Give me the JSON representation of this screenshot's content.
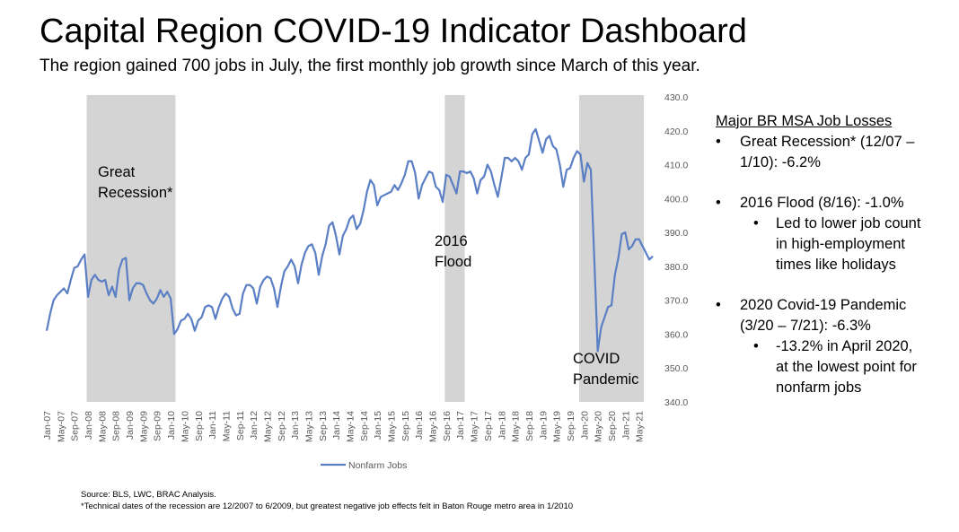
{
  "title": "Capital Region COVID-19 Indicator Dashboard",
  "subtitle": "The region gained 700 jobs in July, the first monthly job growth since March of this year.",
  "chart_data": {
    "type": "line",
    "series": [
      {
        "name": "Nonfarm Jobs",
        "color": "#5b7fc4",
        "start": "Jan-07",
        "values": [
          361,
          366,
          370,
          371.5,
          372.5,
          373.5,
          372,
          376,
          379.5,
          380,
          382,
          383.5,
          371,
          376,
          377.5,
          376,
          375.5,
          376,
          371.5,
          374,
          371,
          379,
          382,
          382.5,
          370,
          373.5,
          375,
          375,
          374.5,
          372,
          370,
          369,
          370.5,
          373,
          371,
          372.5,
          370.5,
          360,
          361.5,
          364,
          364.5,
          366,
          364.5,
          361,
          364,
          365,
          368,
          368.5,
          368,
          364.5,
          368,
          370.5,
          372,
          371,
          367.5,
          365.5,
          366,
          372,
          374.5,
          374.5,
          373.5,
          369,
          374,
          376,
          377,
          376.5,
          373.5,
          368,
          374,
          378.5,
          380,
          382,
          380,
          375,
          380.5,
          384,
          386,
          386.5,
          384,
          377.5,
          383,
          386.5,
          392,
          393,
          389,
          383.5,
          389,
          391,
          394,
          395,
          391,
          392.5,
          396.5,
          402,
          405.5,
          404,
          398,
          400.5,
          401,
          401.5,
          402,
          404,
          402.5,
          404.5,
          407,
          411,
          411,
          407.5,
          400,
          404,
          406,
          408,
          407.5,
          403.5,
          402.5,
          399,
          407,
          406.5,
          404,
          401.5,
          408,
          408,
          407.5,
          408,
          406,
          401.5,
          405.5,
          406.5,
          410,
          408,
          404,
          400.5,
          406,
          412,
          412,
          411,
          412,
          411,
          408.5,
          412,
          413,
          419,
          420.5,
          417,
          413.5,
          417.5,
          418.5,
          415.5,
          414.5,
          410,
          403.5,
          408.5,
          409,
          412,
          414,
          413,
          405,
          410.5,
          408.5,
          382.5,
          355,
          362,
          365,
          368,
          368.5,
          377.5,
          382.5,
          389.5,
          390,
          385,
          386,
          388,
          388,
          386,
          384,
          382,
          383
        ]
      }
    ],
    "x_tick_labels": [
      "Jan-07",
      "May-07",
      "Sep-07",
      "Jan-08",
      "May-08",
      "Sep-08",
      "Jan-09",
      "May-09",
      "Sep-09",
      "Jan-10",
      "May-10",
      "Sep-10",
      "Jan-11",
      "May-11",
      "Sep-11",
      "Jan-12",
      "May-12",
      "Sep-12",
      "Jan-13",
      "May-13",
      "Sep-13",
      "Jan-14",
      "May-14",
      "Sep-14",
      "Jan-15",
      "May-15",
      "Sep-15",
      "Jan-16",
      "May-16",
      "Sep-16",
      "Jan-17",
      "May-17",
      "Sep-17",
      "Jan-18",
      "May-18",
      "Sep-18",
      "Jan-19",
      "May-19",
      "Sep-19",
      "Jan-20",
      "May-20",
      "Sep-20",
      "Jan-21",
      "May-21"
    ],
    "x_tick_step_months": 4,
    "y_ticks": [
      "340.0",
      "350.0",
      "360.0",
      "370.0",
      "380.0",
      "390.0",
      "400.0",
      "410.0",
      "420.0",
      "430.0"
    ],
    "ylim": [
      340,
      430
    ],
    "y_axis_position": "right",
    "legend": "Nonfarm Jobs",
    "legend_position": "bottom",
    "shaded_periods": [
      {
        "start_index": 12,
        "end_index": 37,
        "label_lines": [
          "Great",
          "Recession*"
        ]
      },
      {
        "start_index": 116,
        "end_index": 121,
        "label_lines": [
          "2016",
          "Flood"
        ]
      },
      {
        "start_index": 155,
        "end_index": 173,
        "label_lines": [
          "COVID",
          "Pandemic"
        ]
      }
    ]
  },
  "sidebar": {
    "heading": "Major BR MSA Job Losses",
    "b1_l1": "Great Recession* (12/07 –",
    "b1_l2": "1/10): -6.2%",
    "b2": "2016 Flood (8/16): -1.0%",
    "b2s_l1": "Led to lower job count",
    "b2s_l2": "in high-employment",
    "b2s_l3": "times like holidays",
    "b3_l1": "2020 Covid-19 Pandemic",
    "b3_l2": "(3/20 – 7/21): -6.3%",
    "b3s_l1": "-13.2% in April 2020,",
    "b3s_l2": "at the lowest point for",
    "b3s_l3": "nonfarm jobs"
  },
  "footer": {
    "source": "Source: BLS, LWC, BRAC Analysis.",
    "note": "*Technical dates of the recession are 12/2007 to 6/2009, but greatest negative job effects felt in Baton Rouge metro area in 1/2010"
  }
}
